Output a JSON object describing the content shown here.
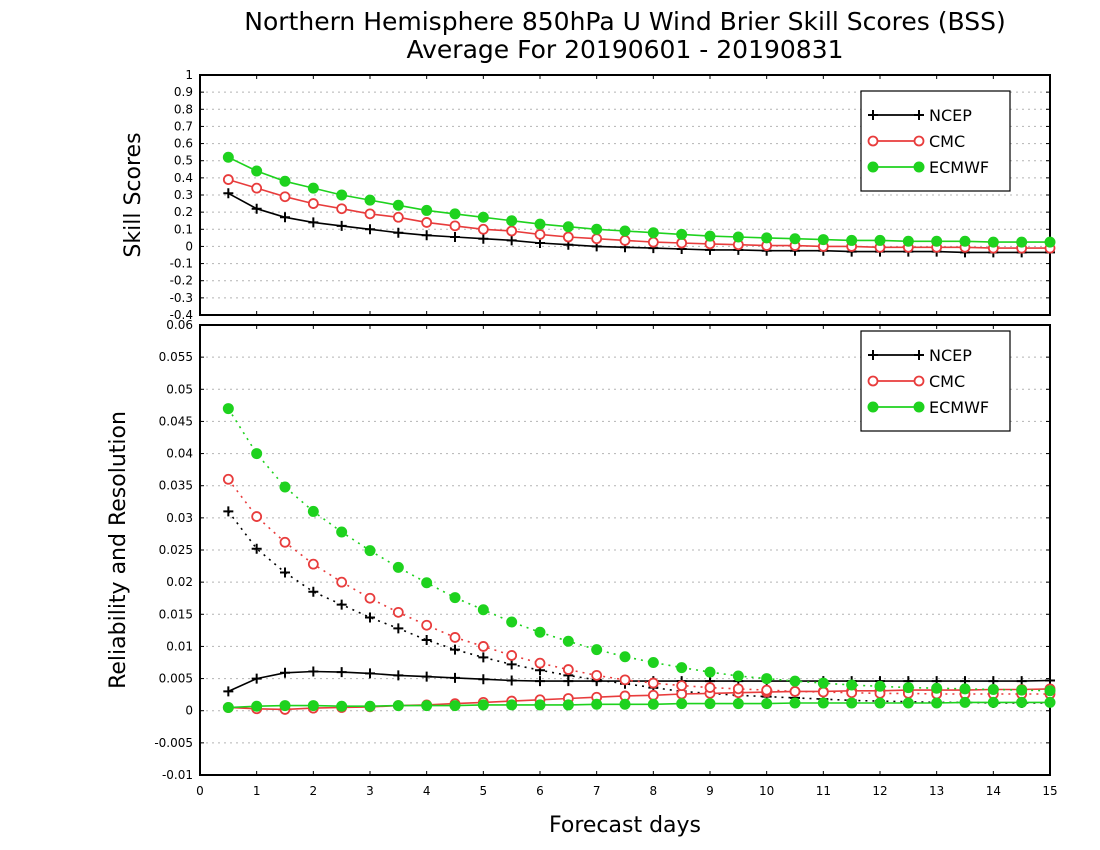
{
  "title_line1": "Northern Hemisphere 850hPa U Wind Brier Skill Scores (BSS)",
  "title_line2": "Average For 20190601 - 20190831",
  "xlabel": "Forecast days",
  "colors": {
    "NCEP": "#000000",
    "CMC": "#e83c3c",
    "ECMWF": "#1ed21e",
    "grid": "#b4b4b4"
  },
  "chart_data": [
    {
      "type": "line",
      "panel": "top",
      "ylabel": "Skill Scores",
      "xlim": [
        0,
        15
      ],
      "ylim": [
        -0.4,
        1
      ],
      "grid": true,
      "legend_position": "top-right",
      "x_ticks": [
        "0",
        "1",
        "2",
        "3",
        "4",
        "5",
        "6",
        "7",
        "8",
        "9",
        "10",
        "11",
        "12",
        "13",
        "14",
        "15"
      ],
      "y_ticks": [
        "1",
        "0.9",
        "0.8",
        "0.7",
        "0.6",
        "0.5",
        "0.4",
        "0.3",
        "0.2",
        "0.1",
        "0",
        "-0.1",
        "-0.2",
        "-0.3",
        "-0.4"
      ],
      "x": [
        0.5,
        1,
        1.5,
        2,
        2.5,
        3,
        3.5,
        4,
        4.5,
        5,
        5.5,
        6,
        6.5,
        7,
        7.5,
        8,
        8.5,
        9,
        9.5,
        10,
        10.5,
        11,
        11.5,
        12,
        12.5,
        13,
        13.5,
        14,
        14.5,
        15
      ],
      "series": [
        {
          "name": "NCEP",
          "marker": "plus",
          "line": "solid",
          "values": [
            0.31,
            0.22,
            0.17,
            0.14,
            0.12,
            0.1,
            0.08,
            0.065,
            0.055,
            0.045,
            0.035,
            0.02,
            0.01,
            0.0,
            -0.005,
            -0.01,
            -0.015,
            -0.02,
            -0.02,
            -0.025,
            -0.025,
            -0.025,
            -0.03,
            -0.03,
            -0.03,
            -0.03,
            -0.035,
            -0.035,
            -0.035,
            -0.035
          ]
        },
        {
          "name": "CMC",
          "marker": "open-circle",
          "line": "solid",
          "values": [
            0.39,
            0.34,
            0.29,
            0.25,
            0.22,
            0.19,
            0.17,
            0.14,
            0.12,
            0.1,
            0.09,
            0.07,
            0.055,
            0.045,
            0.035,
            0.025,
            0.02,
            0.015,
            0.01,
            0.005,
            0.005,
            0.0,
            0.0,
            -0.005,
            -0.005,
            -0.005,
            -0.005,
            -0.01,
            -0.01,
            -0.01
          ]
        },
        {
          "name": "ECMWF",
          "marker": "filled-circle",
          "line": "solid",
          "values": [
            0.52,
            0.44,
            0.38,
            0.34,
            0.3,
            0.27,
            0.24,
            0.21,
            0.19,
            0.17,
            0.15,
            0.13,
            0.115,
            0.1,
            0.09,
            0.08,
            0.07,
            0.06,
            0.055,
            0.05,
            0.045,
            0.04,
            0.035,
            0.035,
            0.03,
            0.03,
            0.03,
            0.025,
            0.025,
            0.025
          ]
        }
      ]
    },
    {
      "type": "line",
      "panel": "bottom",
      "ylabel": "Reliability and Resolution",
      "xlim": [
        0,
        15
      ],
      "ylim": [
        -0.01,
        0.06
      ],
      "grid": true,
      "legend_position": "top-right",
      "x_ticks": [
        "0",
        "1",
        "2",
        "3",
        "4",
        "5",
        "6",
        "7",
        "8",
        "9",
        "10",
        "11",
        "12",
        "13",
        "14",
        "15"
      ],
      "y_ticks": [
        "0.06",
        "0.055",
        "0.05",
        "0.045",
        "0.04",
        "0.035",
        "0.03",
        "0.025",
        "0.02",
        "0.015",
        "0.01",
        "0.005",
        "0",
        "-0.005",
        "-0.01"
      ],
      "x": [
        0.5,
        1,
        1.5,
        2,
        2.5,
        3,
        3.5,
        4,
        4.5,
        5,
        5.5,
        6,
        6.5,
        7,
        7.5,
        8,
        8.5,
        9,
        9.5,
        10,
        10.5,
        11,
        11.5,
        12,
        12.5,
        13,
        13.5,
        14,
        14.5,
        15
      ],
      "series": [
        {
          "name": "NCEP",
          "marker": "plus",
          "line": "solid",
          "values": [
            0.003,
            0.005,
            0.0059,
            0.0061,
            0.006,
            0.0058,
            0.0055,
            0.0053,
            0.0051,
            0.0049,
            0.0047,
            0.0046,
            0.0046,
            0.0046,
            0.0046,
            0.0046,
            0.0046,
            0.0046,
            0.0046,
            0.0046,
            0.0046,
            0.0046,
            0.0046,
            0.0046,
            0.0046,
            0.0046,
            0.0046,
            0.0046,
            0.0046,
            0.0047
          ]
        },
        {
          "name": "NCEP",
          "marker": "plus",
          "line": "dotted",
          "values": [
            0.031,
            0.0252,
            0.0215,
            0.0185,
            0.0165,
            0.0145,
            0.0128,
            0.011,
            0.0095,
            0.0083,
            0.0072,
            0.0063,
            0.0055,
            0.0048,
            0.0042,
            0.0036,
            0.003,
            0.0027,
            0.0024,
            0.0022,
            0.002,
            0.0018,
            0.0016,
            0.0015,
            0.0014,
            0.0013,
            0.0013,
            0.0012,
            0.0012,
            0.0012
          ]
        },
        {
          "name": "CMC",
          "marker": "open-circle",
          "line": "solid",
          "values": [
            0.0005,
            0.0003,
            0.0002,
            0.0004,
            0.0005,
            0.0006,
            0.0008,
            0.0009,
            0.0011,
            0.0013,
            0.0015,
            0.0017,
            0.0019,
            0.0021,
            0.0023,
            0.0024,
            0.0026,
            0.0027,
            0.0028,
            0.0029,
            0.003,
            0.003,
            0.0031,
            0.0031,
            0.0032,
            0.0032,
            0.0032,
            0.0033,
            0.0033,
            0.0034
          ]
        },
        {
          "name": "CMC",
          "marker": "open-circle",
          "line": "dotted",
          "values": [
            0.036,
            0.0302,
            0.0262,
            0.0228,
            0.02,
            0.0175,
            0.0153,
            0.0133,
            0.0114,
            0.01,
            0.0086,
            0.0074,
            0.0064,
            0.0055,
            0.0048,
            0.0043,
            0.0039,
            0.0036,
            0.0034,
            0.0032,
            0.003,
            0.0029,
            0.0028,
            0.0027,
            0.0027,
            0.0026,
            0.0026,
            0.0026,
            0.0026,
            0.0026
          ]
        },
        {
          "name": "ECMWF",
          "marker": "filled-circle",
          "line": "solid",
          "values": [
            0.0005,
            0.0007,
            0.0008,
            0.0008,
            0.0007,
            0.0007,
            0.0008,
            0.0008,
            0.0008,
            0.0009,
            0.0009,
            0.0009,
            0.0009,
            0.001,
            0.001,
            0.001,
            0.0011,
            0.0011,
            0.0011,
            0.0011,
            0.0012,
            0.0012,
            0.0012,
            0.0012,
            0.0012,
            0.0012,
            0.0013,
            0.0013,
            0.0013,
            0.0013
          ]
        },
        {
          "name": "ECMWF",
          "marker": "filled-circle",
          "line": "dotted",
          "values": [
            0.047,
            0.04,
            0.0348,
            0.031,
            0.0278,
            0.0249,
            0.0223,
            0.0199,
            0.0176,
            0.0157,
            0.0138,
            0.0122,
            0.0108,
            0.0095,
            0.0084,
            0.0075,
            0.0067,
            0.006,
            0.0054,
            0.005,
            0.0046,
            0.0043,
            0.004,
            0.0038,
            0.0036,
            0.0035,
            0.0034,
            0.0033,
            0.0032,
            0.0031
          ]
        }
      ]
    }
  ],
  "legend": [
    {
      "name": "NCEP",
      "marker": "plus"
    },
    {
      "name": "CMC",
      "marker": "open-circle"
    },
    {
      "name": "ECMWF",
      "marker": "filled-circle"
    }
  ]
}
